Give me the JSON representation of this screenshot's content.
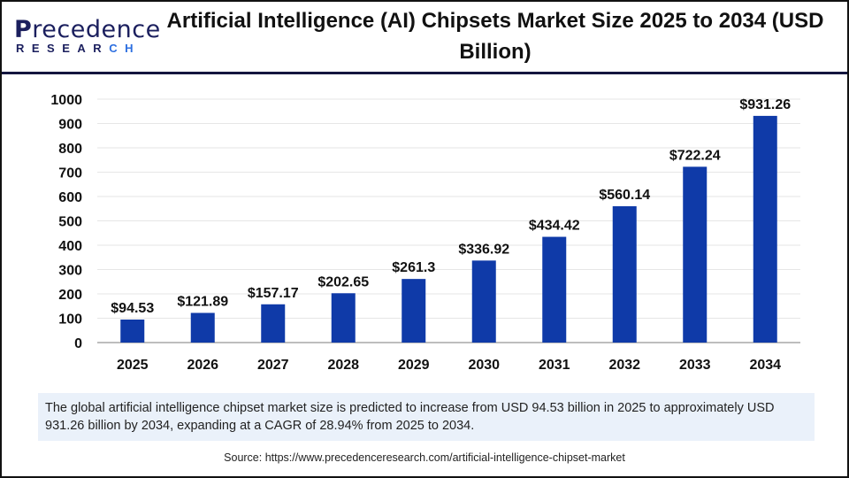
{
  "brand": {
    "logo_line1": "Precedence",
    "logo_line2": "RESEARCH"
  },
  "colors": {
    "bar": "#0f3aa8",
    "header_rule": "#14163f",
    "note_bg": "#eaf1fa"
  },
  "chart_data": {
    "type": "bar",
    "title": "Artificial Intelligence (AI) Chipsets Market Size 2025 to 2034 (USD Billion)",
    "categories": [
      "2025",
      "2026",
      "2027",
      "2028",
      "2029",
      "2030",
      "2031",
      "2032",
      "2033",
      "2034"
    ],
    "values": [
      94.53,
      121.89,
      157.17,
      202.65,
      261.3,
      336.92,
      434.42,
      560.14,
      722.24,
      931.26
    ],
    "data_labels": [
      "$94.53",
      "$121.89",
      "$157.17",
      "$202.65",
      "$261.3",
      "$336.92",
      "$434.42",
      "$560.14",
      "$722.24",
      "$931.26"
    ],
    "yticks": [
      0,
      100,
      200,
      300,
      400,
      500,
      600,
      700,
      800,
      900,
      1000
    ],
    "ylim": [
      0,
      1000
    ],
    "xlabel": "",
    "ylabel": "",
    "grid": true
  },
  "note": "The global artificial intelligence chipset market size is predicted to increase from USD 94.53 billion in 2025 to approximately USD 931.26 billion by 2034, expanding at a CAGR of 28.94% from 2025 to 2034.",
  "source": "Source: https://www.precedenceresearch.com/artificial-intelligence-chipset-market"
}
